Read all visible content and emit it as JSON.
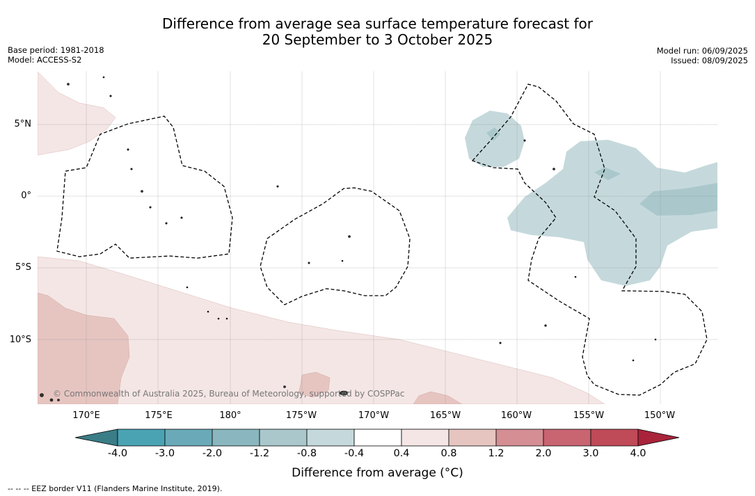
{
  "title_line1": "Difference from average sea surface temperature forecast for",
  "title_line2": "20 September to 3 October 2025",
  "meta_left": [
    "Base period: 1981-2018",
    "Model: ACCESS-S2"
  ],
  "meta_right": [
    "Model run: 06/09/2025",
    "Issued: 08/09/2025"
  ],
  "lat_labels": [
    "5°N",
    "0°",
    "5°S",
    "10°S"
  ],
  "lon_labels": [
    "170°E",
    "175°E",
    "180°",
    "175°W",
    "170°W",
    "165°W",
    "160°W",
    "155°W",
    "150°W"
  ],
  "copyright": "© Commonwealth of Australia 2025, Bureau of Meteorology, supported by COSPPac",
  "colorbar": {
    "ticks": [
      "-4.0",
      "-3.0",
      "-2.0",
      "-1.2",
      "-0.8",
      "-0.4",
      "0.4",
      "0.8",
      "1.2",
      "2.0",
      "3.0",
      "4.0"
    ],
    "colors": [
      "#3a7d86",
      "#4aa3b3",
      "#6aaab8",
      "#8ab7bf",
      "#aac8cc",
      "#c5d9dc",
      "#ffffff",
      "#f4e6e5",
      "#e6c5c1",
      "#d48e94",
      "#c96471",
      "#bf4a58",
      "#a9233b"
    ],
    "label": "Difference from average (°C)"
  },
  "footnote": "-- -- -- EEZ border V11 (Flanders Marine Institute, 2019).",
  "map_colors": {
    "warm_light": "#f4e6e5",
    "warm_mid": "#e6c5c1",
    "cool_light": "#c5d9dc",
    "cool_mid": "#aac8cc"
  }
}
